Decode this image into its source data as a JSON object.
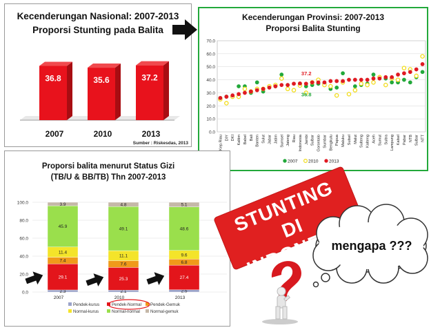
{
  "panel_national": {
    "title_line1": "Kecenderungan Nasional: 2007-2013",
    "title_line2": "Proporsi Stunting pada Balita",
    "source": "Sumber : Riskesdas, 2013"
  },
  "panel_provinsi": {
    "title_line1": "Kecenderungan Provinsi: 2007-2013",
    "title_line2": "Proporsi Balita Stunting"
  },
  "panel_status": {
    "title_line1": "Proporsi balita menurut  Status Gizi",
    "title_line2": "(TB/U & BB/TB) Thn 2007-2013"
  },
  "stamp": {
    "line1": "STUNTING",
    "line2": "DI INDONESIA"
  },
  "thought": {
    "text": "mengapa ???"
  },
  "colors": {
    "red": "#e8121c",
    "green2007": "#22a83a",
    "yellow2010": "#f2dc18",
    "red2013": "#e01a22"
  },
  "chart_data": [
    {
      "type": "bar",
      "categories": [
        "2007",
        "2010",
        "2013"
      ],
      "values": [
        36.8,
        35.6,
        37.2
      ],
      "value_labels": [
        "36.8",
        "35.6",
        "37.2"
      ],
      "ylim": [
        0,
        45
      ],
      "grid": false,
      "legend": "none"
    },
    {
      "type": "scatter",
      "categories": [
        "Kep.Riau",
        "DIY",
        "DKI",
        "Kaltim",
        "Babel",
        "Bali",
        "Banten",
        "Sulut",
        "Jabar",
        "Jatim",
        "Sumsel",
        "Jateng",
        "Riau",
        "Indonesia",
        "Jambi",
        "Sulbar",
        "Gorontalo",
        "Sumbar",
        "Bengkulu",
        "Papua",
        "Maluku",
        "Sulsel",
        "Malut",
        "Sulteng",
        "Kalteng",
        "Aceh",
        "Sumut",
        "Sultra",
        "Lampung",
        "Kalsel",
        "Pabar",
        "NTB",
        "Sulbar",
        "NTT"
      ],
      "series": [
        {
          "name": "2007",
          "values": [
            26,
            27,
            27,
            35,
            35,
            30,
            38,
            31,
            35,
            35,
            44,
            36,
            32,
            36.8,
            35,
            36,
            37,
            37,
            33,
            34,
            45,
            29,
            35,
            36,
            37,
            44,
            42,
            41,
            38,
            38,
            40,
            38,
            42,
            46
          ]
        },
        {
          "name": "2010",
          "values": [
            25,
            22,
            27,
            27,
            33,
            31,
            33,
            33,
            35,
            36,
            41,
            33,
            32,
            35.6,
            30,
            38,
            40,
            36,
            35,
            28,
            38,
            29,
            32,
            37,
            36,
            38,
            42,
            36,
            41,
            40,
            49,
            48,
            43,
            58
          ]
        },
        {
          "name": "2013",
          "values": [
            26,
            27,
            28,
            29,
            30,
            31,
            32,
            33,
            34,
            35,
            36,
            36,
            37,
            37.2,
            37,
            38,
            38,
            38,
            39,
            39,
            39,
            40,
            40,
            40,
            40,
            41,
            41,
            42,
            42,
            44,
            45,
            46,
            48,
            52
          ]
        }
      ],
      "annotations": [
        {
          "text": "37.2"
        },
        {
          "text": "36.8"
        }
      ],
      "y_ticks": [
        "0.0",
        "10.0",
        "20.0",
        "30.0",
        "40.0",
        "50.0",
        "60.0",
        "70.0"
      ],
      "ylim": [
        0,
        70
      ],
      "grid": true,
      "legend": "bottom-center",
      "legend_labels": [
        "2007",
        "2010",
        "2013"
      ]
    },
    {
      "type": "bar",
      "categories": [
        "2007",
        "2010",
        "2013"
      ],
      "series": [
        {
          "name": "Pendek-kurus",
          "values": [
            2.3,
            2.1,
            2.5
          ]
        },
        {
          "name": "Pendek-Normal",
          "values": [
            29.1,
            25.3,
            27.4
          ]
        },
        {
          "name": "Pendek-Gemuk",
          "values": [
            7.4,
            7.6,
            6.8
          ]
        },
        {
          "name": "Normal-kurus",
          "values": [
            11.4,
            11.1,
            9.6
          ]
        },
        {
          "name": "Normal-normal",
          "values": [
            45.9,
            49.1,
            48.6
          ]
        },
        {
          "name": "Normal-gemuk",
          "values": [
            3.9,
            4.8,
            5.1
          ]
        }
      ],
      "y_ticks": [
        "0.0",
        "20.0",
        "40.0",
        "60.0",
        "80.0",
        "100.0"
      ],
      "ylim": [
        0,
        100
      ],
      "grid": true,
      "legend": "bottom-center"
    }
  ]
}
